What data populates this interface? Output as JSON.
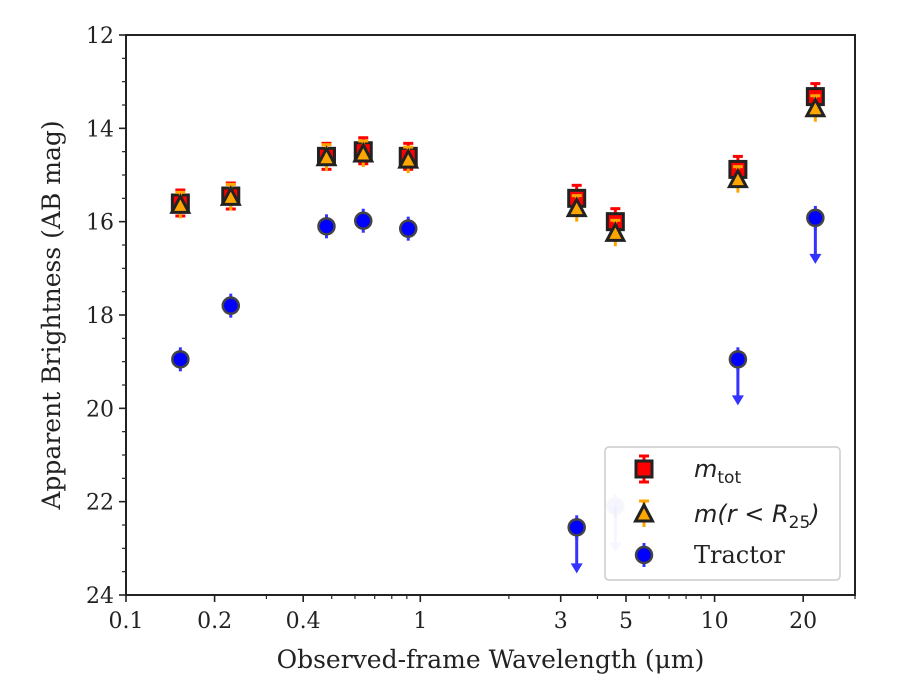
{
  "chart_data": {
    "type": "scatter",
    "title": "",
    "xlabel": "Observed-frame Wavelength (μm)",
    "ylabel": "Apparent Brightness (AB mag)",
    "xscale": "log",
    "xlim": [
      0.1,
      30
    ],
    "ylim": [
      24,
      12
    ],
    "y_inverted": true,
    "x_ticks": [
      0.1,
      0.2,
      0.4,
      1,
      3,
      5,
      10,
      20
    ],
    "x_tick_labels": [
      "0.1",
      "0.2",
      "0.4",
      "1",
      "3",
      "5",
      "10",
      "20"
    ],
    "y_ticks": [
      12,
      14,
      16,
      18,
      20,
      22,
      24
    ],
    "y_tick_labels": [
      "12",
      "14",
      "16",
      "18",
      "20",
      "22",
      "24"
    ],
    "grid": false,
    "legend_position": "lower-right",
    "series": [
      {
        "name": "m_tot",
        "legend_label": "m",
        "legend_sub": "tot",
        "marker": "square",
        "color": "#ff0000",
        "edge_color": "#222222",
        "errorbar_color": "#ff0000",
        "points": [
          {
            "x": 0.153,
            "y": 15.6
          },
          {
            "x": 0.227,
            "y": 15.45
          },
          {
            "x": 0.48,
            "y": 14.6
          },
          {
            "x": 0.64,
            "y": 14.48
          },
          {
            "x": 0.91,
            "y": 14.6
          },
          {
            "x": 3.4,
            "y": 15.5
          },
          {
            "x": 4.6,
            "y": 16.0
          },
          {
            "x": 12.0,
            "y": 14.88
          },
          {
            "x": 22.0,
            "y": 13.32
          }
        ]
      },
      {
        "name": "m(r < R_25)",
        "legend_label": "m(r < R",
        "legend_sub": "25",
        "legend_suffix": ")",
        "marker": "triangle",
        "color": "#ffa500",
        "edge_color": "#222222",
        "errorbar_color": "#ffa500",
        "points": [
          {
            "x": 0.153,
            "y": 15.65
          },
          {
            "x": 0.227,
            "y": 15.48
          },
          {
            "x": 0.48,
            "y": 14.63
          },
          {
            "x": 0.64,
            "y": 14.55
          },
          {
            "x": 0.91,
            "y": 14.68
          },
          {
            "x": 3.4,
            "y": 15.72
          },
          {
            "x": 4.6,
            "y": 16.25
          },
          {
            "x": 12.0,
            "y": 15.1
          },
          {
            "x": 22.0,
            "y": 13.58
          }
        ]
      },
      {
        "name": "Tractor",
        "legend_label": "Tractor",
        "marker": "circle",
        "color": "#0000ff",
        "edge_color": "#444444",
        "errorbar_color": "#3333ff",
        "points": [
          {
            "x": 0.153,
            "y": 18.95
          },
          {
            "x": 0.227,
            "y": 17.8
          },
          {
            "x": 0.48,
            "y": 16.1
          },
          {
            "x": 0.64,
            "y": 15.98
          },
          {
            "x": 0.91,
            "y": 16.15
          },
          {
            "x": 3.4,
            "y": 22.55,
            "upper_limit": true
          },
          {
            "x": 4.6,
            "y": 22.1,
            "upper_limit": true,
            "faded": true
          },
          {
            "x": 12.0,
            "y": 18.95,
            "upper_limit": true
          },
          {
            "x": 22.0,
            "y": 15.92,
            "upper_limit": true
          }
        ]
      }
    ]
  }
}
